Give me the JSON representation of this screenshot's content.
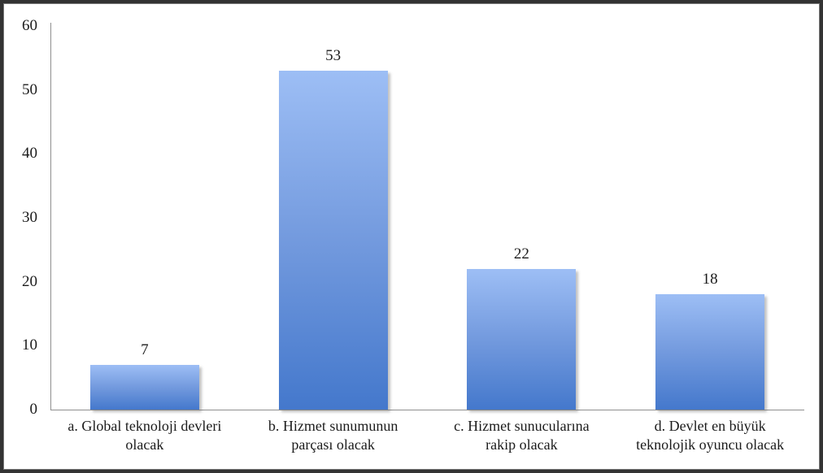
{
  "chart_data": {
    "type": "bar",
    "title": "",
    "xlabel": "",
    "ylabel": "",
    "categories": [
      "a. Global teknoloji devleri\nolacak",
      "b. Hizmet sunumunun\nparçası olacak",
      "c. Hizmet sunucularına\nrakip olacak",
      "d. Devlet en büyük\nteknolojik oyuncu olacak"
    ],
    "values": [
      7,
      53,
      22,
      18
    ],
    "value_labels": [
      "7",
      "53",
      "22",
      "18"
    ],
    "ylim": [
      0,
      60
    ],
    "yticks": [
      0,
      10,
      20,
      30,
      40,
      50,
      60
    ],
    "grid": false,
    "legend": "none",
    "colors": {
      "bar_gradient_top": "#9dbef5",
      "bar_gradient_mid": "#739ade",
      "bar_gradient_bottom": "#4478cc",
      "axis_line": "#8f8f8f",
      "text": "#1b1b1b",
      "frame_border": "#333333"
    }
  }
}
